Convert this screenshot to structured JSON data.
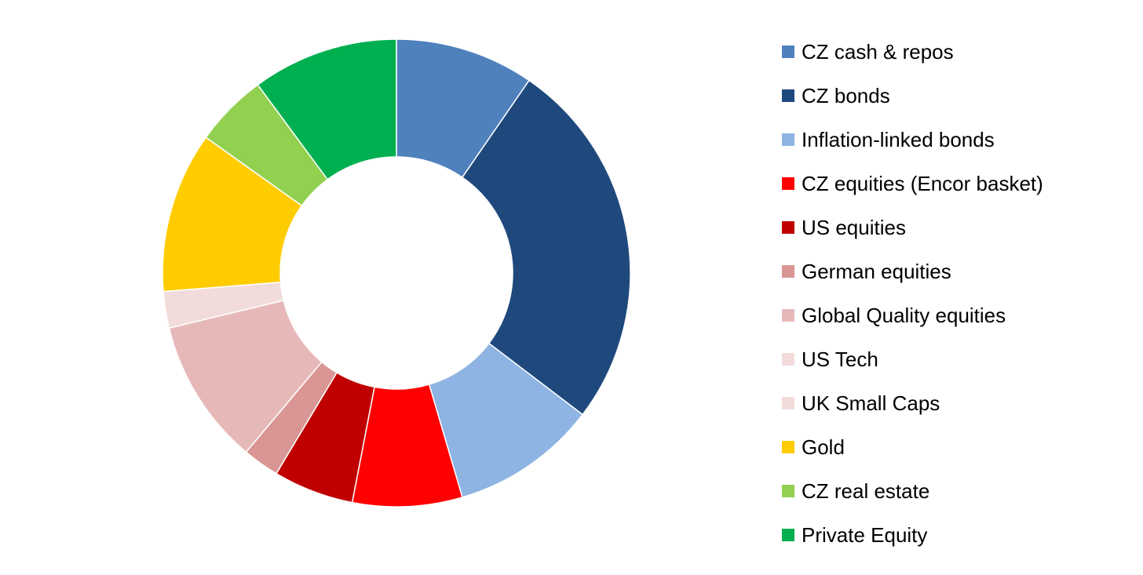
{
  "chart_data": {
    "type": "pie",
    "variant": "donut",
    "legend_position": "right",
    "categories": [
      "CZ cash & repos",
      "CZ bonds",
      "Inflation-linked bonds",
      "CZ equities (Encor basket)",
      "US equities",
      "German equities",
      "Global Quality equities",
      "US Tech",
      "UK Small Caps",
      "Gold",
      "CZ real estate",
      "Private Equity"
    ],
    "values": [
      9.5,
      25.5,
      10.0,
      7.5,
      5.5,
      2.5,
      10.0,
      2.5,
      0.0,
      11.0,
      5.0,
      10.0
    ],
    "colors": [
      "#4F81BD",
      "#1F497D",
      "#8EB4E3",
      "#FF0000",
      "#C00000",
      "#D99694",
      "#E6B9B8",
      "#F2DCDB",
      "#F2DCDB",
      "#FFCC00",
      "#92D050",
      "#00B050"
    ]
  }
}
